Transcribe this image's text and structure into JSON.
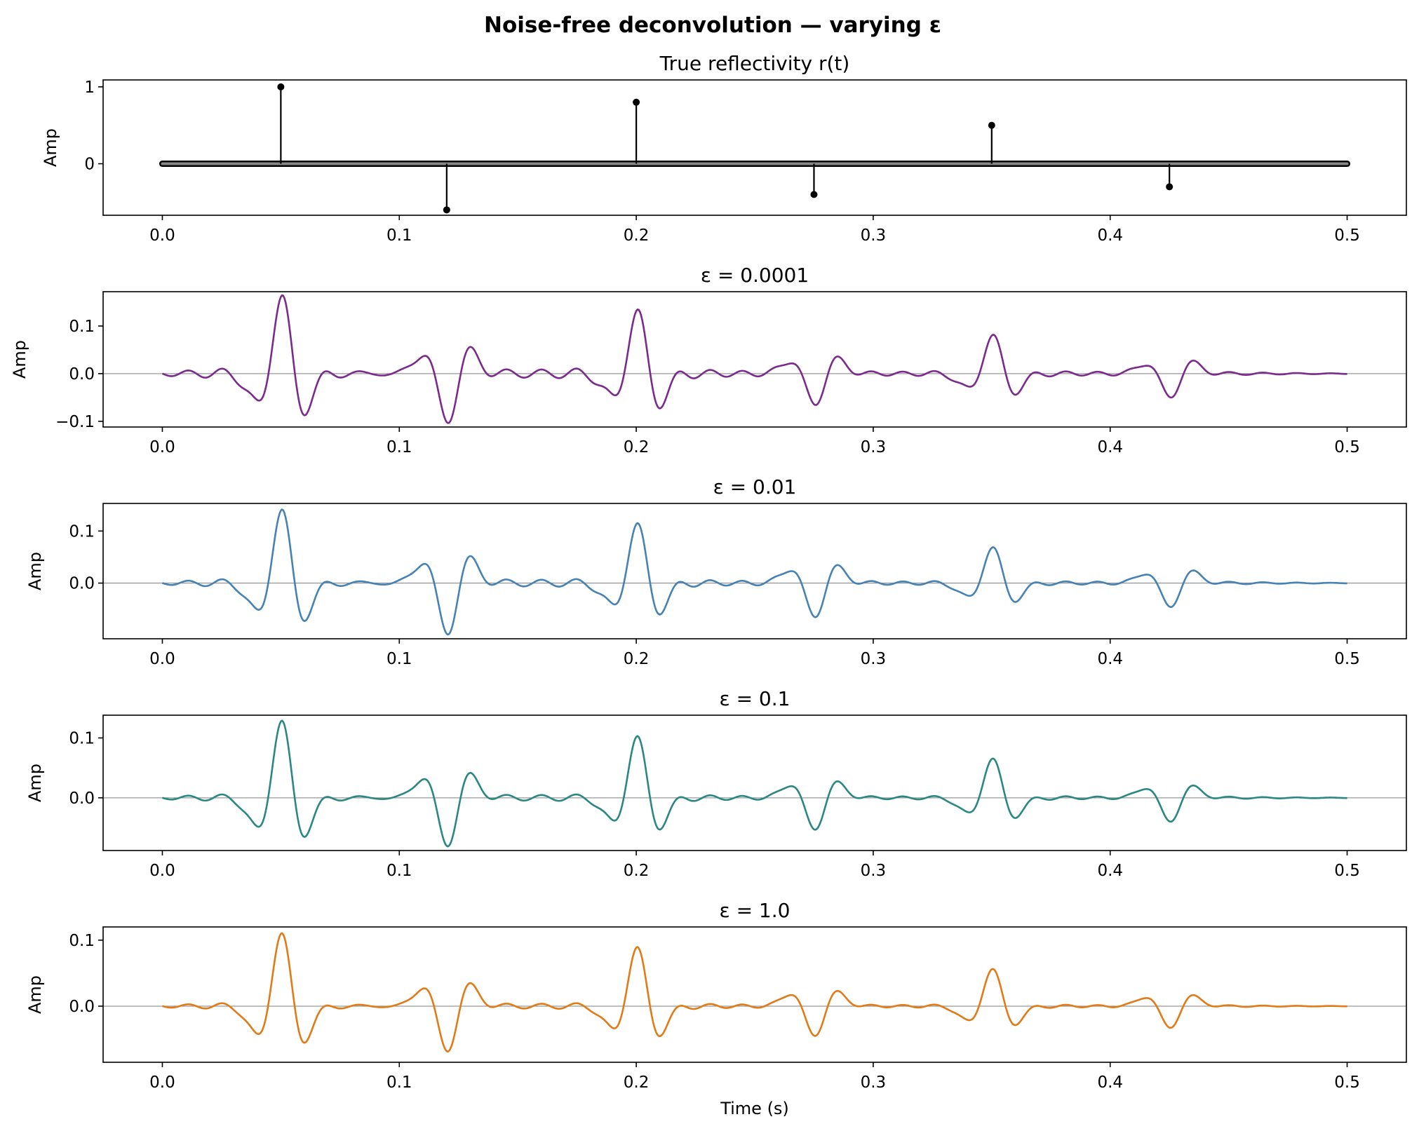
{
  "suptitle": "Noise-free deconvolution — varying ε",
  "chart_data": [
    {
      "type": "stem",
      "title": "True reflectivity  r(t)",
      "xlabel": "",
      "ylabel": "Amp",
      "xlim": [
        -0.025,
        0.525
      ],
      "ylim": [
        -0.67,
        1.09
      ],
      "xticks": [
        "0.0",
        "0.1",
        "0.2",
        "0.3",
        "0.4",
        "0.5"
      ],
      "yticks": [
        {
          "value": 1,
          "label": "1"
        },
        {
          "value": 0,
          "label": "0"
        }
      ],
      "x": [
        0.05,
        0.12,
        0.2,
        0.275,
        0.35,
        0.425
      ],
      "values": [
        1.0,
        -0.6,
        0.8,
        -0.4,
        0.5,
        -0.3
      ],
      "baseline": [
        0,
        0.5
      ],
      "color": "#000000"
    },
    {
      "type": "line",
      "title": "ε = 0.0001",
      "xlabel": "",
      "ylabel": "Amp",
      "xlim": [
        -0.025,
        0.525
      ],
      "ylim": [
        -0.112,
        0.172
      ],
      "xticks": [
        "0.0",
        "0.1",
        "0.2",
        "0.3",
        "0.4",
        "0.5"
      ],
      "yticks": [
        {
          "value": 0.1,
          "label": "0.1"
        },
        {
          "value": 0,
          "label": "0.0"
        },
        {
          "value": -0.1,
          "label": "−0.1"
        }
      ],
      "color": "#7b2a8d",
      "peaks": {
        "x": [
          0.05,
          0.12,
          0.2,
          0.275,
          0.35,
          0.425
        ],
        "values": [
          0.162,
          -0.101,
          0.13,
          -0.065,
          0.08,
          -0.05
        ]
      },
      "ripple": 0.16
    },
    {
      "type": "line",
      "title": "ε = 0.01",
      "xlabel": "",
      "ylabel": "Amp",
      "xlim": [
        -0.025,
        0.525
      ],
      "ylim": [
        -0.107,
        0.153
      ],
      "xticks": [
        "0.0",
        "0.1",
        "0.2",
        "0.3",
        "0.4",
        "0.5"
      ],
      "yticks": [
        {
          "value": 0.1,
          "label": "0.1"
        },
        {
          "value": 0,
          "label": "0.0"
        }
      ],
      "color": "#4682b4",
      "peaks": {
        "x": [
          0.05,
          0.12,
          0.2,
          0.275,
          0.35,
          0.425
        ],
        "values": [
          0.14,
          -0.097,
          0.112,
          -0.065,
          0.068,
          -0.046
        ]
      },
      "ripple": 0.13
    },
    {
      "type": "line",
      "title": "ε = 0.1",
      "xlabel": "",
      "ylabel": "Amp",
      "xlim": [
        -0.025,
        0.525
      ],
      "ylim": [
        -0.088,
        0.138
      ],
      "xticks": [
        "0.0",
        "0.1",
        "0.2",
        "0.3",
        "0.4",
        "0.5"
      ],
      "yticks": [
        {
          "value": 0.1,
          "label": "0.1"
        },
        {
          "value": 0,
          "label": "0.0"
        }
      ],
      "color": "#2a8783",
      "peaks": {
        "x": [
          0.05,
          0.12,
          0.2,
          0.275,
          0.35,
          0.425
        ],
        "values": [
          0.128,
          -0.08,
          0.101,
          -0.053,
          0.065,
          -0.04
        ]
      },
      "ripple": 0.11
    },
    {
      "type": "line",
      "title": "ε = 1.0",
      "xlabel": "Time (s)",
      "ylabel": "Amp",
      "xlim": [
        -0.025,
        0.525
      ],
      "ylim": [
        -0.085,
        0.12
      ],
      "xticks": [
        "0.0",
        "0.1",
        "0.2",
        "0.3",
        "0.4",
        "0.5"
      ],
      "yticks": [
        {
          "value": 0.1,
          "label": "0.1"
        },
        {
          "value": 0,
          "label": "0.0"
        }
      ],
      "color": "#e07b17",
      "peaks": {
        "x": [
          0.05,
          0.12,
          0.2,
          0.275,
          0.35,
          0.425
        ],
        "values": [
          0.11,
          -0.068,
          0.088,
          -0.045,
          0.056,
          -0.033
        ]
      },
      "ripple": 0.1
    }
  ]
}
